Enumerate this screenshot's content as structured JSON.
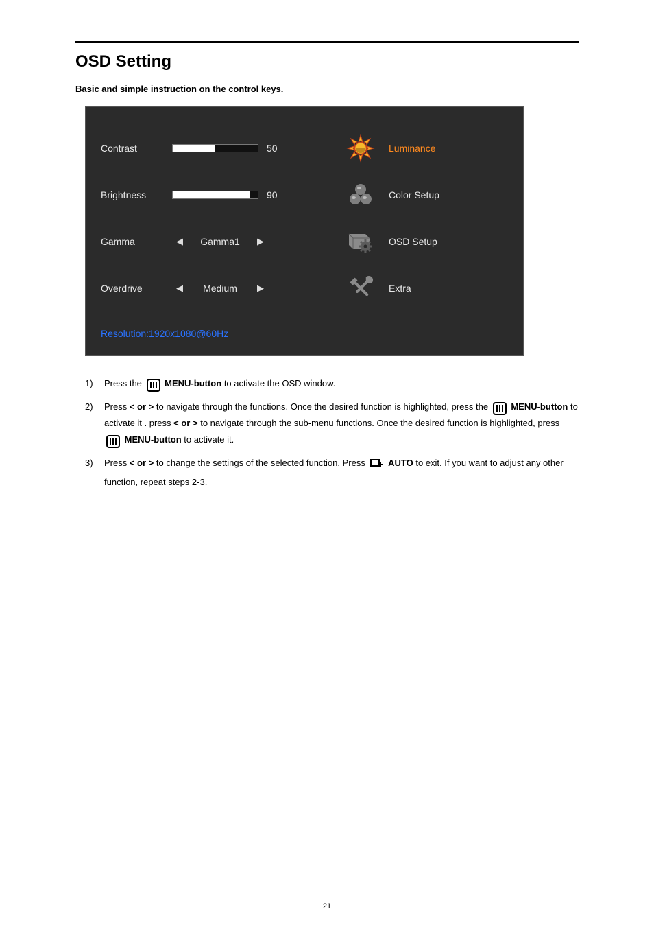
{
  "page": {
    "title": "OSD Setting",
    "subtitle": "Basic and simple instruction on the control keys.",
    "page_number": "21"
  },
  "osd": {
    "panel_bg": "#2b2b2b",
    "text_color": "#e8e8e8",
    "active_color": "#ff8a1f",
    "footer_color": "#2a72ff",
    "left_rows": [
      {
        "label": "Contrast",
        "kind": "slider",
        "value": 50,
        "display": "50"
      },
      {
        "label": "Brightness",
        "kind": "slider",
        "value": 90,
        "display": "90"
      },
      {
        "label": "Gamma",
        "kind": "option",
        "display": "Gamma1"
      },
      {
        "label": "Overdrive",
        "kind": "option",
        "display": "Medium"
      }
    ],
    "right_rows": [
      {
        "label": "Luminance",
        "icon": "sun",
        "active": true,
        "colors": {
          "fill": "#f7b92b",
          "outline": "#c9461a",
          "shadow": "#5a2a00"
        }
      },
      {
        "label": "Color Setup",
        "icon": "rgb-balls",
        "active": false,
        "colors": {
          "ball": "#7f7f7f",
          "shade": "#5c5c5c"
        }
      },
      {
        "label": "OSD Setup",
        "icon": "window-gear",
        "active": false,
        "colors": {
          "fill": "#8a8a8a",
          "shade": "#5c5c5c"
        }
      },
      {
        "label": "Extra",
        "icon": "tools",
        "active": false,
        "colors": {
          "fill": "#8a8a8a",
          "shade": "#5c5c5c"
        }
      }
    ],
    "footer": "Resolution:1920x1080@60Hz"
  },
  "instructions": {
    "menu_button": "MENU-button",
    "lt_gt": "< or >",
    "auto": "AUTO",
    "step1_a": "Press the ",
    "step1_b": " to activate the OSD window.",
    "step2_a": "Press ",
    "step2_b": " to navigate through the functions. Once the desired function is highlighted, press the ",
    "step2_c": " to activate it .   press ",
    "step2_d": " to navigate through the sub-menu functions. Once the desired function is highlighted, press ",
    "step2_e": " to activate it.",
    "step3_a": "Press ",
    "step3_b": " to change the settings of the selected function. Press  ",
    "step3_c": " to exit.   If you want to adjust any other function, repeat steps 2-3."
  }
}
